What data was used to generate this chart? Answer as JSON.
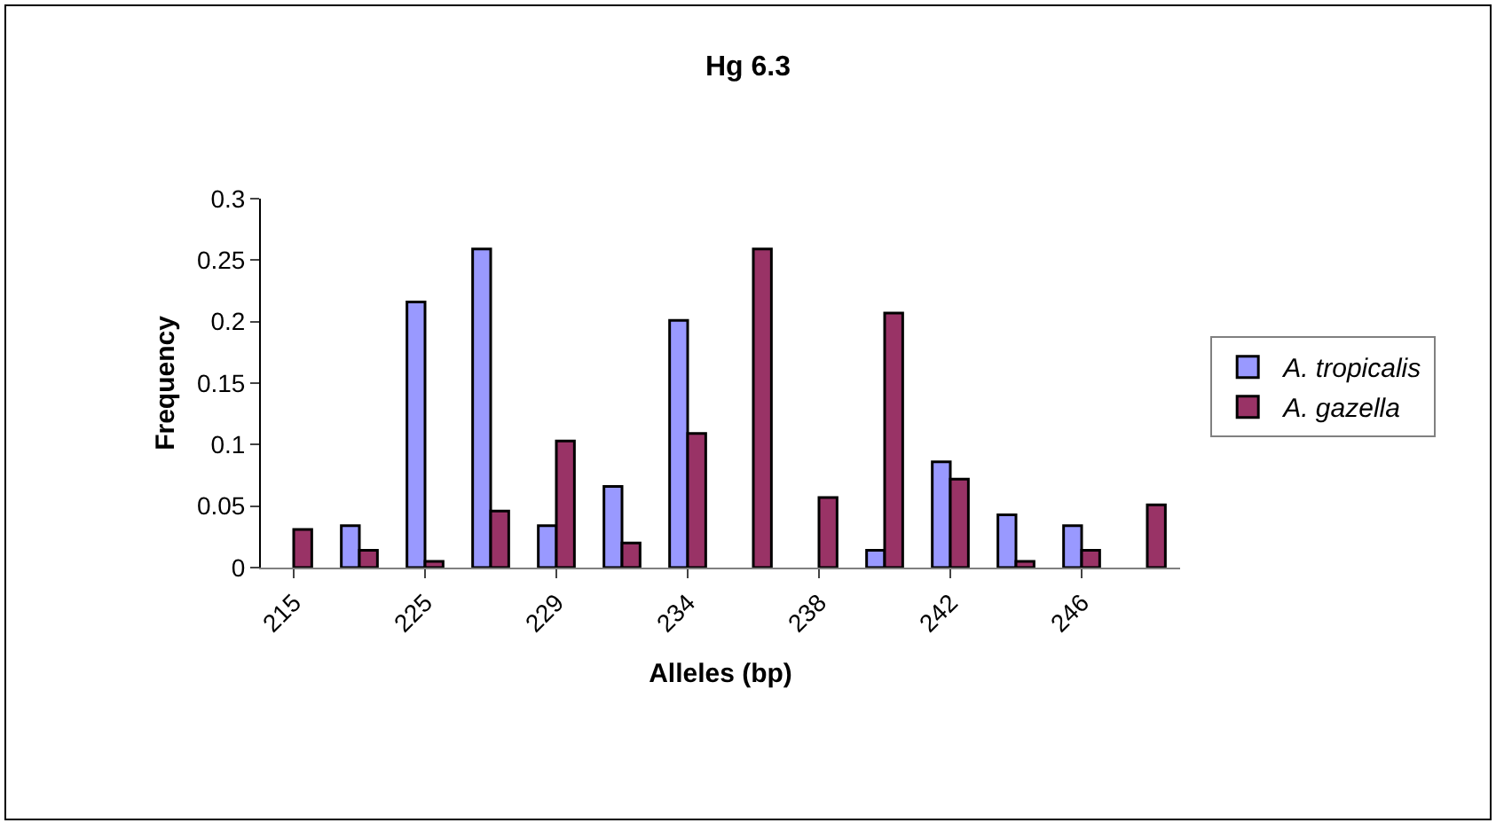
{
  "chart_data": {
    "type": "bar",
    "title": "Hg 6.3",
    "xlabel": "Alleles (bp)",
    "ylabel": "Frequency",
    "categories": [
      "215",
      null,
      "225",
      null,
      "229",
      null,
      "234",
      null,
      "238",
      null,
      "242",
      null,
      "246",
      null
    ],
    "series": [
      {
        "name": "A. tropicalis",
        "color": "#9999ff",
        "values": [
          null,
          0.034,
          0.216,
          0.259,
          0.034,
          0.066,
          0.201,
          null,
          null,
          0.014,
          0.086,
          0.043,
          0.034,
          null
        ]
      },
      {
        "name": "A. gazella",
        "color": "#993366",
        "values": [
          0.031,
          0.014,
          0.005,
          0.046,
          0.103,
          0.02,
          0.109,
          0.259,
          0.057,
          0.207,
          0.072,
          0.005,
          0.014,
          0.051
        ]
      }
    ],
    "ylim": [
      0,
      0.3
    ],
    "yticks": [
      0,
      0.05,
      0.1,
      0.15,
      0.2,
      0.25,
      0.3
    ],
    "legend": "right"
  }
}
